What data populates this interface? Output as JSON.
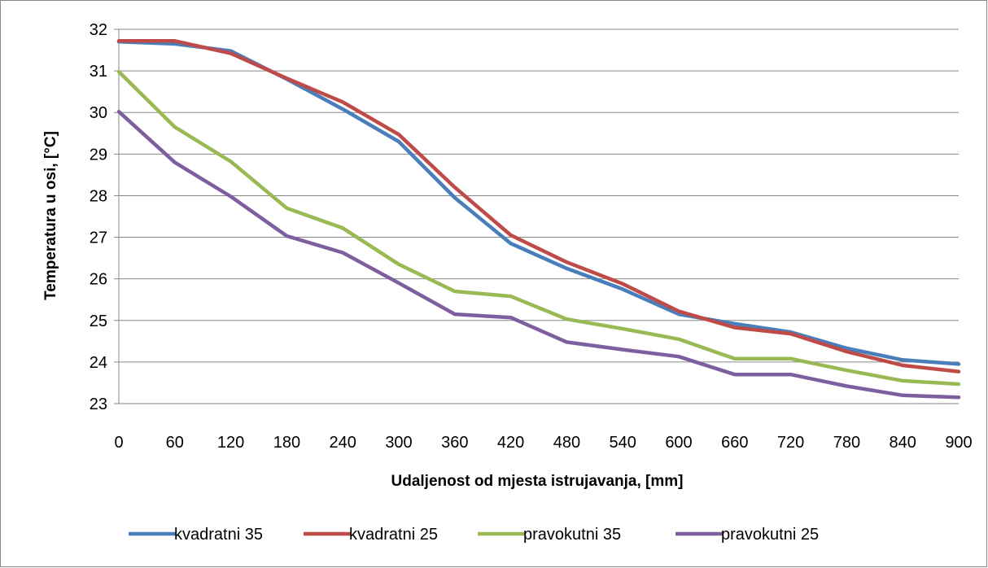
{
  "chart_data": {
    "type": "line",
    "title": "",
    "xlabel": "Udaljenost od mjesta istrujavanja,  [mm]",
    "ylabel": "Temperatura u osi, [°C]",
    "x": [
      0,
      60,
      120,
      180,
      240,
      300,
      360,
      420,
      480,
      540,
      600,
      660,
      720,
      780,
      840,
      900
    ],
    "x_tick_labels": [
      "0",
      "60",
      "120",
      "180",
      "240",
      "300",
      "360",
      "420",
      "480",
      "540",
      "600",
      "660",
      "720",
      "780",
      "840",
      "900"
    ],
    "ylim": [
      23,
      32
    ],
    "y_ticks": [
      23,
      24,
      25,
      26,
      27,
      28,
      29,
      30,
      31,
      32
    ],
    "grid": "horizontal",
    "legend_position": "bottom",
    "series": [
      {
        "name": "kvadratni 35",
        "color": "#4a7ebb",
        "values": [
          31.7,
          31.65,
          31.48,
          30.8,
          30.08,
          29.3,
          27.95,
          26.85,
          26.25,
          25.75,
          25.15,
          24.92,
          24.72,
          24.33,
          24.05,
          23.95
        ]
      },
      {
        "name": "kvadratni 25",
        "color": "#be4b48",
        "values": [
          31.72,
          31.72,
          31.42,
          30.82,
          30.25,
          29.47,
          28.2,
          27.05,
          26.4,
          25.88,
          25.22,
          24.83,
          24.68,
          24.25,
          23.92,
          23.77
        ]
      },
      {
        "name": "pravokutni 35",
        "color": "#98b954",
        "values": [
          30.98,
          29.65,
          28.82,
          27.7,
          27.22,
          26.35,
          25.7,
          25.58,
          25.03,
          24.8,
          24.55,
          24.08,
          24.08,
          23.8,
          23.55,
          23.47
        ]
      },
      {
        "name": "pravokutni 25",
        "color": "#7d5fa0",
        "values": [
          30.02,
          28.8,
          27.98,
          27.03,
          26.63,
          25.9,
          25.15,
          25.07,
          24.48,
          24.3,
          24.13,
          23.7,
          23.7,
          23.42,
          23.2,
          23.15
        ]
      }
    ]
  }
}
